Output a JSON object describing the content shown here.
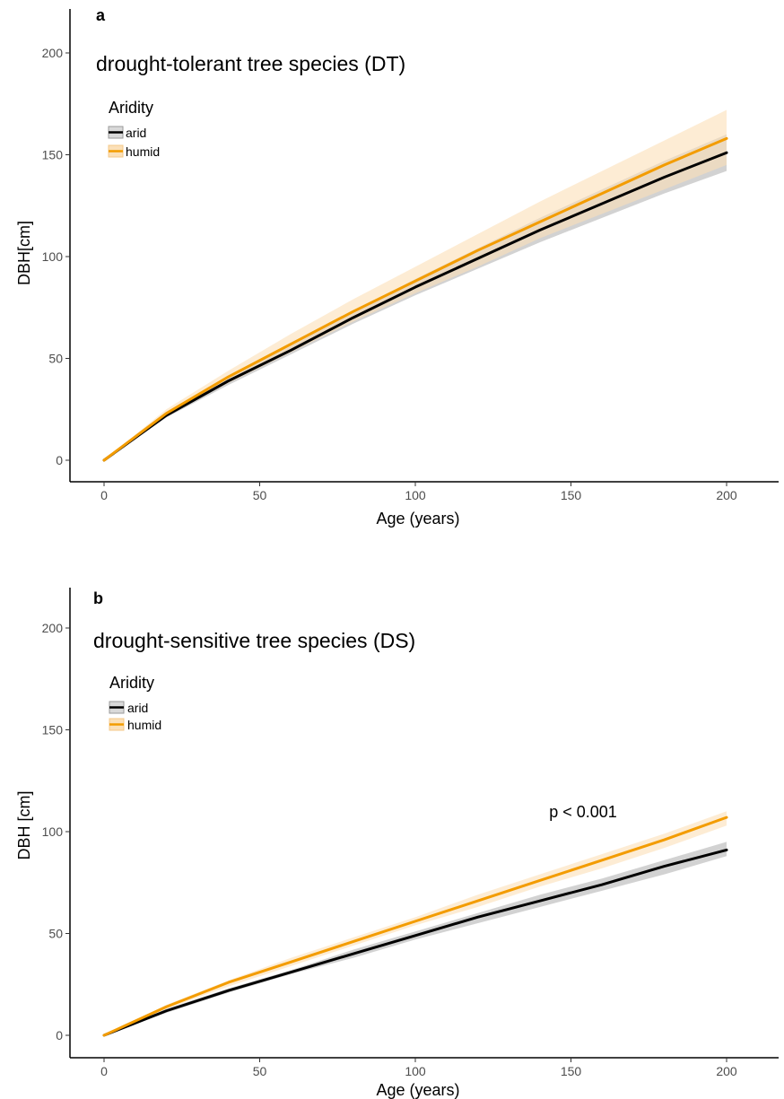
{
  "chart_data": [
    {
      "type": "line",
      "panel_letter": "a",
      "title": "drought-tolerant tree species (DT)",
      "xlabel": "Age (years)",
      "ylabel": "DBH[cm]",
      "xlim": [
        -10,
        220
      ],
      "ylim": [
        -10,
        220
      ],
      "x_ticks": [
        0,
        50,
        100,
        150,
        200
      ],
      "y_ticks": [
        0,
        50,
        100,
        150,
        200
      ],
      "grid": false,
      "legend": {
        "title": "Aridity",
        "position": "top-left"
      },
      "annotation": "",
      "x": [
        0,
        20,
        40,
        60,
        80,
        100,
        120,
        140,
        160,
        180,
        200
      ],
      "series": [
        {
          "name": "arid",
          "color": "#000000",
          "band_color": "#7f7f7f",
          "values": [
            0,
            22,
            39,
            54,
            70,
            85,
            99,
            113,
            126,
            139,
            151
          ],
          "lower": [
            0,
            21,
            37,
            52,
            67,
            81,
            94,
            107,
            119,
            131,
            142
          ],
          "upper": [
            0,
            23,
            41,
            56,
            73,
            89,
            104,
            119,
            133,
            147,
            160
          ]
        },
        {
          "name": "humid",
          "color": "#f39c00",
          "band_color": "#fbe0b8",
          "values": [
            0,
            23,
            41,
            57,
            73,
            88,
            103,
            117,
            131,
            145,
            158
          ],
          "lower": [
            0,
            22,
            38,
            53,
            68,
            82,
            95,
            109,
            121,
            133,
            145
          ],
          "upper": [
            0,
            25,
            44,
            62,
            79,
            95,
            111,
            127,
            142,
            157,
            172
          ]
        }
      ]
    },
    {
      "type": "line",
      "panel_letter": "b",
      "title": "drought-sensitive tree species (DS)",
      "xlabel": "Age (years)",
      "ylabel": "DBH [cm]",
      "xlim": [
        -10,
        220
      ],
      "ylim": [
        -10,
        220
      ],
      "x_ticks": [
        0,
        50,
        100,
        150,
        200
      ],
      "y_ticks": [
        0,
        50,
        100,
        150,
        200
      ],
      "grid": false,
      "legend": {
        "title": "Aridity",
        "position": "top-left"
      },
      "annotation": "p < 0.001",
      "x": [
        0,
        20,
        40,
        60,
        80,
        100,
        120,
        140,
        160,
        180,
        200
      ],
      "series": [
        {
          "name": "arid",
          "color": "#000000",
          "band_color": "#7f7f7f",
          "values": [
            0,
            12,
            22,
            31,
            40,
            49,
            58,
            66,
            74,
            83,
            91
          ],
          "lower": [
            0,
            11,
            21,
            30,
            38,
            47,
            55,
            63,
            71,
            79,
            88
          ],
          "upper": [
            0,
            13,
            23,
            32,
            42,
            51,
            60,
            69,
            77,
            86,
            95
          ]
        },
        {
          "name": "humid",
          "color": "#f39c00",
          "band_color": "#fbe0b8",
          "values": [
            0,
            14,
            26,
            36,
            46,
            56,
            66,
            76,
            86,
            96,
            107
          ],
          "lower": [
            0,
            13,
            24,
            34,
            44,
            54,
            63,
            73,
            82,
            92,
            103
          ],
          "upper": [
            0,
            15,
            27,
            38,
            48,
            58,
            69,
            79,
            89,
            99,
            110
          ]
        }
      ]
    }
  ]
}
